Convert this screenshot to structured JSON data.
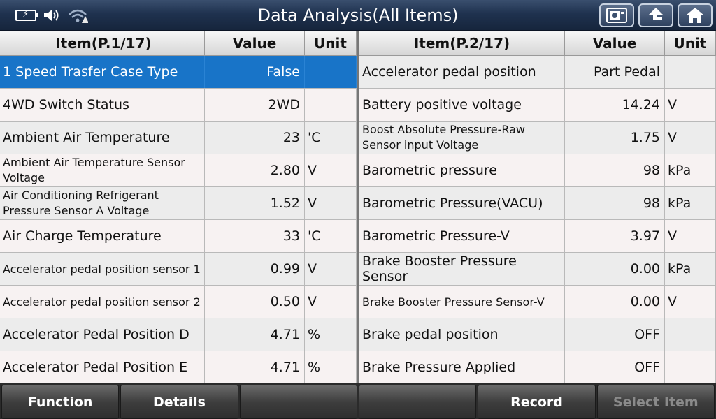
{
  "header": {
    "title": "Data Analysis(All Items)",
    "icons": [
      "battery-charging-icon",
      "speaker-icon",
      "wifi-warning-icon",
      "screenshot-icon",
      "back-icon",
      "home-icon"
    ]
  },
  "left_table": {
    "headers": {
      "item": "Item(P.1/17)",
      "value": "Value",
      "unit": "Unit"
    },
    "rows": [
      {
        "item": "1 Speed Trasfer Case Type",
        "value": "False",
        "unit": ""
      },
      {
        "item": "4WD Switch Status",
        "value": "2WD",
        "unit": ""
      },
      {
        "item": "Ambient Air Temperature",
        "value": "23",
        "unit": "'C"
      },
      {
        "item": "Ambient Air Temperature Sensor Voltage",
        "value": "2.80",
        "unit": "V"
      },
      {
        "item": "Air Conditioning Refrigerant Pressure Sensor A Voltage",
        "value": "1.52",
        "unit": "V"
      },
      {
        "item": "Air Charge Temperature",
        "value": "33",
        "unit": "'C"
      },
      {
        "item": "Accelerator pedal position sensor 1",
        "value": "0.99",
        "unit": "V"
      },
      {
        "item": "Accelerator pedal position sensor 2",
        "value": "0.50",
        "unit": "V"
      },
      {
        "item": "Accelerator Pedal Position D",
        "value": "4.71",
        "unit": "%"
      },
      {
        "item": "Accelerator Pedal Position E",
        "value": "4.71",
        "unit": "%"
      }
    ]
  },
  "right_table": {
    "headers": {
      "item": "Item(P.2/17)",
      "value": "Value",
      "unit": "Unit"
    },
    "rows": [
      {
        "item": "Accelerator pedal position",
        "value": "Part Pedal",
        "unit": ""
      },
      {
        "item": "Battery positive voltage",
        "value": "14.24",
        "unit": "V"
      },
      {
        "item": "Boost Absolute Pressure-Raw Sensor input Voltage",
        "value": "1.75",
        "unit": "V"
      },
      {
        "item": "Barometric pressure",
        "value": "98",
        "unit": "kPa"
      },
      {
        "item": "Barometric Pressure(VACU)",
        "value": "98",
        "unit": "kPa"
      },
      {
        "item": "Barometric Pressure-V",
        "value": "3.97",
        "unit": "V"
      },
      {
        "item": "Brake Booster Pressure Sensor",
        "value": "0.00",
        "unit": "kPa"
      },
      {
        "item": "Brake Booster Pressure Sensor-V",
        "value": "0.00",
        "unit": "V"
      },
      {
        "item": "Brake pedal position",
        "value": "OFF",
        "unit": ""
      },
      {
        "item": "Brake Pressure Applied",
        "value": "OFF",
        "unit": ""
      }
    ]
  },
  "footer": {
    "buttons": [
      "Function",
      "Details",
      "",
      "",
      "Record",
      "Select Item"
    ]
  },
  "colors": {
    "selected_row": "#1874c8",
    "title_bar": "#1f324f"
  }
}
